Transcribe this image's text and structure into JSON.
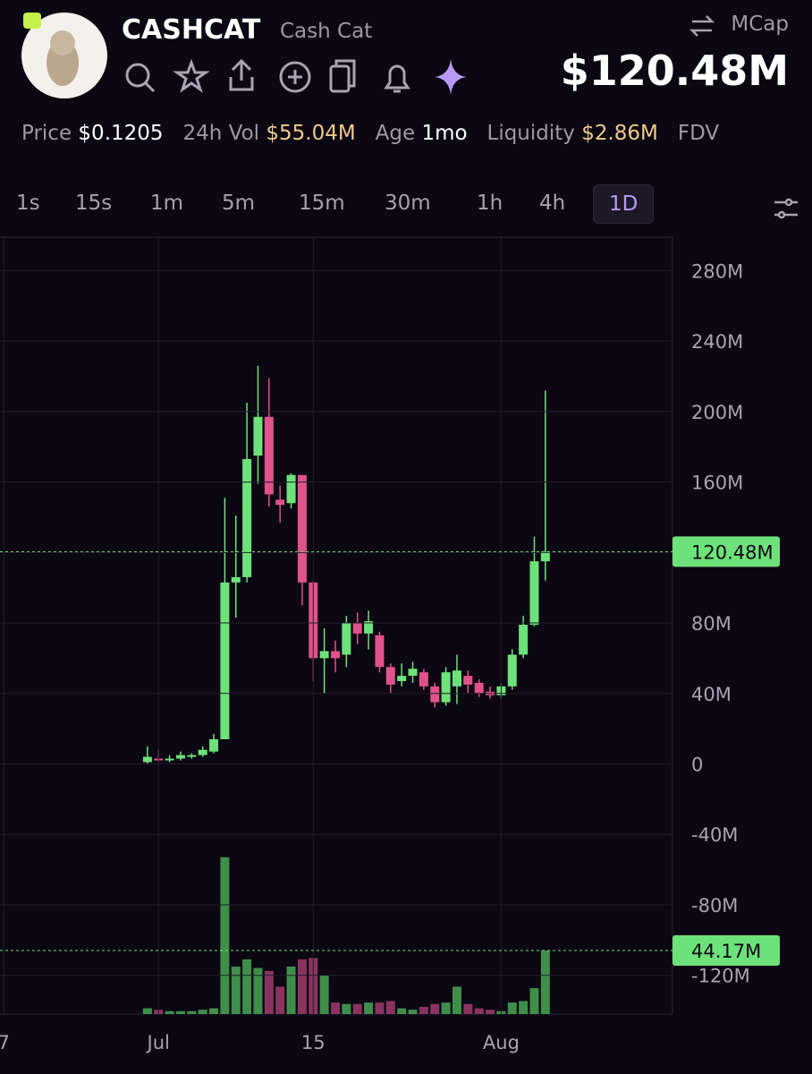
{
  "header": {
    "symbol": "CASHCAT",
    "name": "Cash Cat",
    "mcap_label": "MCap",
    "mcap_value": "$120.48M"
  },
  "stats": [
    {
      "label": "Price",
      "value": "$0.1205"
    },
    {
      "label": "24h Vol",
      "value": "$55.04M"
    },
    {
      "label": "Age",
      "value": "1mo"
    },
    {
      "label": "Liquidity",
      "value": "$2.86M"
    },
    {
      "label": "FDV",
      "value": ""
    }
  ],
  "timeframes": {
    "items": [
      "1s",
      "15s",
      "1m",
      "5m",
      "15m",
      "30m",
      "1h",
      "4h",
      "1D"
    ],
    "active": "1D"
  },
  "chart_data": {
    "type": "candlestick",
    "categories": [
      "7",
      null,
      null,
      null,
      null,
      null,
      null,
      null,
      null,
      null,
      null,
      null,
      null,
      null,
      "Jul",
      null,
      null,
      null,
      null,
      null,
      null,
      null,
      null,
      null,
      null,
      null,
      null,
      null,
      "15",
      null,
      null,
      null,
      null,
      null,
      null,
      null,
      null,
      null,
      null,
      null,
      null,
      null,
      null,
      null,
      null,
      "Aug",
      null,
      null,
      null,
      null,
      null,
      null,
      null,
      null,
      null,
      null,
      null,
      null,
      null,
      null,
      null
    ],
    "open": [
      null,
      null,
      null,
      null,
      null,
      null,
      null,
      null,
      null,
      null,
      null,
      null,
      null,
      1,
      3,
      2,
      3,
      4,
      5,
      7,
      14,
      103,
      106,
      175,
      197,
      150,
      148,
      164,
      103,
      60,
      64,
      62,
      80,
      74,
      73,
      55,
      47,
      50,
      52,
      44,
      35,
      44,
      50,
      46,
      41,
      39,
      44,
      62,
      79,
      115,
      null,
      null,
      null,
      null,
      null,
      null,
      null,
      null,
      null,
      null,
      null
    ],
    "high": [
      null,
      null,
      null,
      null,
      null,
      null,
      null,
      null,
      null,
      null,
      null,
      null,
      null,
      10,
      8,
      5,
      7,
      6,
      10,
      17,
      151,
      141,
      205,
      226,
      219,
      158,
      165,
      164,
      104,
      77,
      70,
      84,
      86,
      87,
      75,
      57,
      57,
      58,
      54,
      46,
      55,
      62,
      53,
      48,
      44,
      46,
      65,
      84,
      129,
      212,
      null,
      null,
      null,
      null,
      null,
      null,
      null,
      null,
      null,
      null,
      null
    ],
    "low": [
      null,
      null,
      null,
      null,
      null,
      null,
      null,
      null,
      null,
      null,
      null,
      null,
      null,
      0,
      1,
      1,
      2,
      3,
      4,
      6,
      14,
      83,
      103,
      159,
      146,
      137,
      145,
      90,
      47,
      40,
      52,
      55,
      68,
      65,
      52,
      40,
      44,
      46,
      42,
      32,
      33,
      34,
      40,
      38,
      37,
      37,
      42,
      60,
      78,
      104,
      null,
      null,
      null,
      null,
      null,
      null,
      null,
      null,
      null,
      null,
      null
    ],
    "close": [
      null,
      null,
      null,
      null,
      null,
      null,
      null,
      null,
      null,
      null,
      null,
      null,
      null,
      4,
      2,
      3,
      5,
      5,
      8,
      14,
      103,
      106,
      173,
      197,
      153,
      147,
      164,
      103,
      60,
      64,
      60,
      80,
      74,
      81,
      55,
      45,
      50,
      54,
      44,
      35,
      52,
      53,
      45,
      40,
      39,
      44,
      62,
      79,
      115,
      120.48,
      null,
      null,
      null,
      null,
      null,
      null,
      null,
      null,
      null,
      null,
      null
    ],
    "volume": [
      null,
      null,
      null,
      null,
      null,
      null,
      null,
      null,
      null,
      null,
      null,
      null,
      null,
      4,
      3,
      2,
      2,
      2,
      3,
      4,
      109,
      33,
      38,
      32,
      30,
      19,
      33,
      38,
      39,
      27,
      8,
      7,
      7,
      8,
      8,
      9,
      4,
      3,
      5,
      7,
      8,
      19,
      7,
      4,
      3,
      2,
      8,
      9,
      18,
      44.17,
      null,
      null,
      null,
      null,
      null,
      null,
      null,
      null,
      null,
      null,
      null
    ],
    "up_color": "#6ee27a",
    "down_color": "#e0528a",
    "volume_up_color": "#3f8f4a",
    "volume_down_color": "#8a3360",
    "ylim": [
      -142,
      299
    ],
    "yticks": [
      {
        "value": 280,
        "label": "280M"
      },
      {
        "value": 240,
        "label": "240M"
      },
      {
        "value": 200,
        "label": "200M"
      },
      {
        "value": 160,
        "label": "160M"
      },
      {
        "value": 120,
        "label": "120M"
      },
      {
        "value": 80,
        "label": "80M"
      },
      {
        "value": 40,
        "label": "40M"
      },
      0,
      {
        "value": -40,
        "label": "-40M"
      },
      {
        "value": -80,
        "label": "-80M"
      },
      {
        "value": -120,
        "label": "-120M"
      }
    ],
    "y2lim": [
      0,
      540
    ],
    "last_price": {
      "value": 120.48,
      "label": "120.48M"
    },
    "last_volume": {
      "value": 44.17,
      "label": "44.17M",
      "axis": "y2"
    },
    "grid": true
  }
}
